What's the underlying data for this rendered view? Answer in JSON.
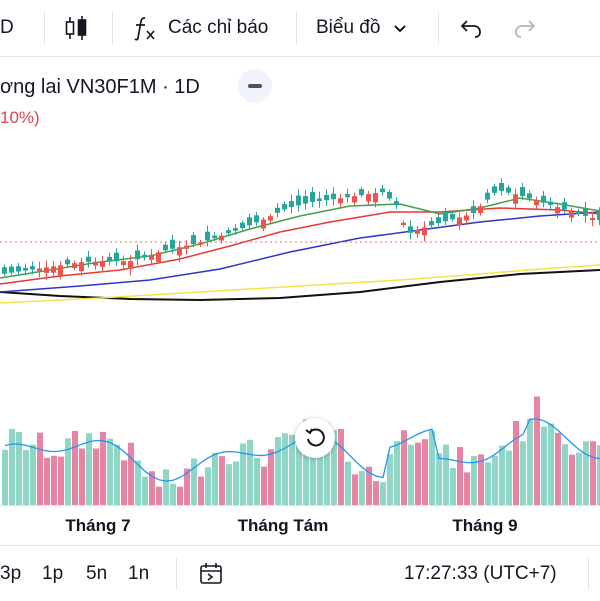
{
  "toolbar": {
    "interval_label": "D",
    "indicators_label": "Các chỉ báo",
    "chart_type_label": "Biểu đồ"
  },
  "legend": {
    "title": "ơng lai VN30F1M · 1D",
    "change_pct": "10%)"
  },
  "xaxis": {
    "labels": [
      "Tháng 7",
      "Tháng Tám",
      "Tháng 9"
    ]
  },
  "bottombar": {
    "ranges": [
      "3p",
      "1p",
      "5n",
      "1n"
    ],
    "clock": "17:27:33 (UTC+7)"
  },
  "colors": {
    "up": "#26a69a",
    "down": "#ef5350",
    "vol_up": "#8fd6c6",
    "vol_down": "#e784a3",
    "ma_green": "#43a047",
    "ma_red": "#e53935",
    "ma_blue": "#2e35c8",
    "ma_yellow": "#f4e34a",
    "ma_black": "#111111",
    "vol_ma": "#2196f3"
  }
}
